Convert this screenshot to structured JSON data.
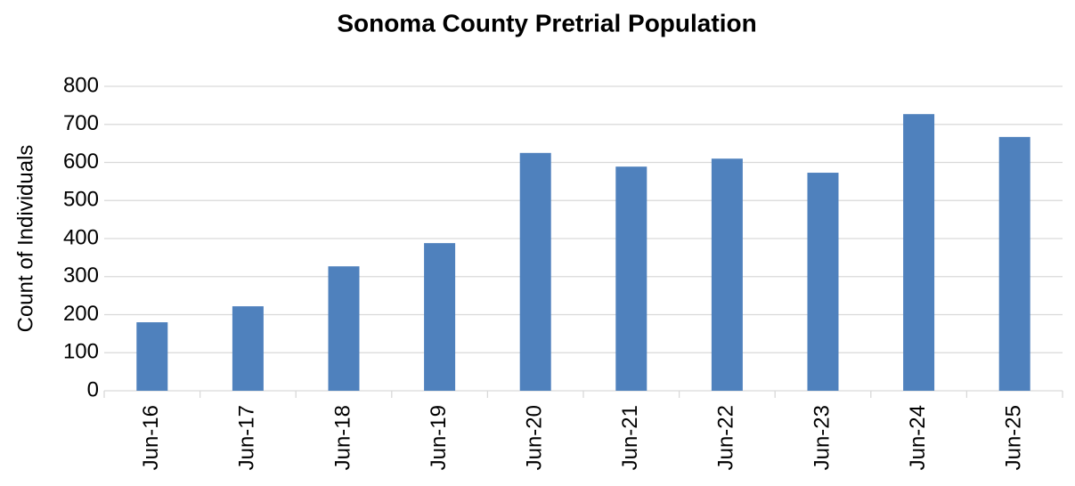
{
  "chart_data": {
    "type": "bar",
    "title": "Sonoma County Pretrial Population",
    "y_label": "Count of Individuals",
    "categories": [
      "Jun-16",
      "Jun-17",
      "Jun-18",
      "Jun-19",
      "Jun-20",
      "Jun-21",
      "Jun-22",
      "Jun-23",
      "Jun-24",
      "Jun-25"
    ],
    "values": [
      180,
      222,
      327,
      388,
      625,
      589,
      610,
      573,
      727,
      667
    ],
    "color": "#4f81bd",
    "ylim": [
      0,
      800
    ],
    "yticks": [
      0,
      100,
      200,
      300,
      400,
      500,
      600,
      700,
      800
    ],
    "grid": true
  }
}
